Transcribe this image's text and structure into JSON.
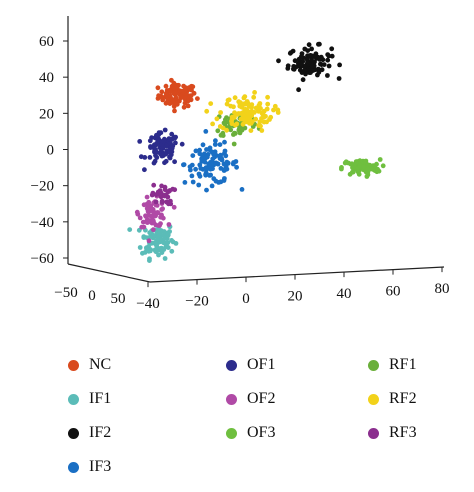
{
  "chart_data": {
    "type": "scatter",
    "title": "",
    "axes": {
      "vertical": {
        "ticks": [
          60,
          40,
          20,
          0,
          -20,
          -40,
          -60
        ],
        "range": [
          -60,
          65
        ]
      },
      "front": {
        "ticks": [
          -40,
          -20,
          0,
          20,
          40,
          60,
          80
        ],
        "range": [
          -40,
          80
        ]
      },
      "side": {
        "ticks": [
          -50,
          0,
          50
        ],
        "range": [
          -50,
          50
        ]
      }
    },
    "legend_placement": "bottom",
    "series": [
      {
        "name": "NC",
        "color": "#d94a1e",
        "center": [
          -28,
          30
        ],
        "spread": [
          7,
          6
        ],
        "n": 90
      },
      {
        "name": "IF1",
        "color": "#5bbcb8",
        "center": [
          -36,
          -50
        ],
        "spread": [
          6,
          9
        ],
        "n": 100
      },
      {
        "name": "IF2",
        "color": "#111111",
        "center": [
          26,
          48
        ],
        "spread": [
          8,
          8
        ],
        "n": 90
      },
      {
        "name": "IF3",
        "color": "#1a6fc4",
        "center": [
          -14,
          -8
        ],
        "spread": [
          10,
          10
        ],
        "n": 100
      },
      {
        "name": "OF1",
        "color": "#2c2c8c",
        "center": [
          -34,
          0
        ],
        "spread": [
          6,
          8
        ],
        "n": 90
      },
      {
        "name": "OF2",
        "color": "#b04aa6",
        "center": [
          -38,
          -35
        ],
        "spread": [
          5,
          7
        ],
        "n": 70
      },
      {
        "name": "OF3",
        "color": "#6fbf3f",
        "center": [
          47,
          -10
        ],
        "spread": [
          7,
          4
        ],
        "n": 80
      },
      {
        "name": "RF1",
        "color": "#6aaf3a",
        "center": [
          -4,
          14
        ],
        "spread": [
          8,
          7
        ],
        "n": 50
      },
      {
        "name": "RF2",
        "color": "#f2d21a",
        "center": [
          0,
          20
        ],
        "spread": [
          10,
          9
        ],
        "n": 110
      },
      {
        "name": "RF3",
        "color": "#8b2e8e",
        "center": [
          -34,
          -25
        ],
        "spread": [
          4,
          5
        ],
        "n": 30
      }
    ]
  }
}
